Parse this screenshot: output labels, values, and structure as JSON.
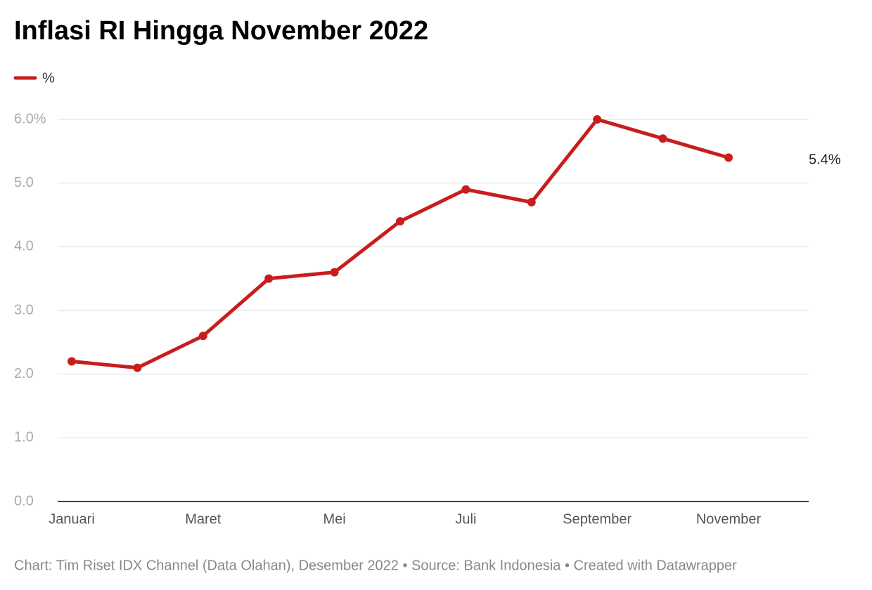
{
  "chart_data": {
    "type": "line",
    "title": "Inflasi RI Hingga November 2022",
    "categories": [
      "Januari",
      null,
      "Maret",
      null,
      "Mei",
      null,
      "Juli",
      null,
      "September",
      null,
      "November"
    ],
    "series": [
      {
        "name": "%",
        "color": "#c71e1d",
        "values": [
          2.2,
          2.1,
          2.6,
          3.5,
          3.6,
          4.4,
          4.9,
          4.7,
          6.0,
          5.7,
          5.4
        ],
        "value_labels": [
          null,
          null,
          null,
          null,
          null,
          null,
          null,
          null,
          null,
          null,
          "5.4%"
        ]
      }
    ],
    "ylim": [
      0,
      6
    ],
    "yticks": [
      {
        "value": 0,
        "label": "0.0"
      },
      {
        "value": 1,
        "label": "1.0"
      },
      {
        "value": 2,
        "label": "2.0"
      },
      {
        "value": 3,
        "label": "3.0"
      },
      {
        "value": 4,
        "label": "4.0"
      },
      {
        "value": 5,
        "label": "5.0"
      },
      {
        "value": 6,
        "label": "6.0%"
      }
    ],
    "grid": true,
    "source": "Chart: Tim Riset IDX Channel (Data Olahan), Desember 2022 • Source: Bank Indonesia • Created with Datawrapper"
  }
}
